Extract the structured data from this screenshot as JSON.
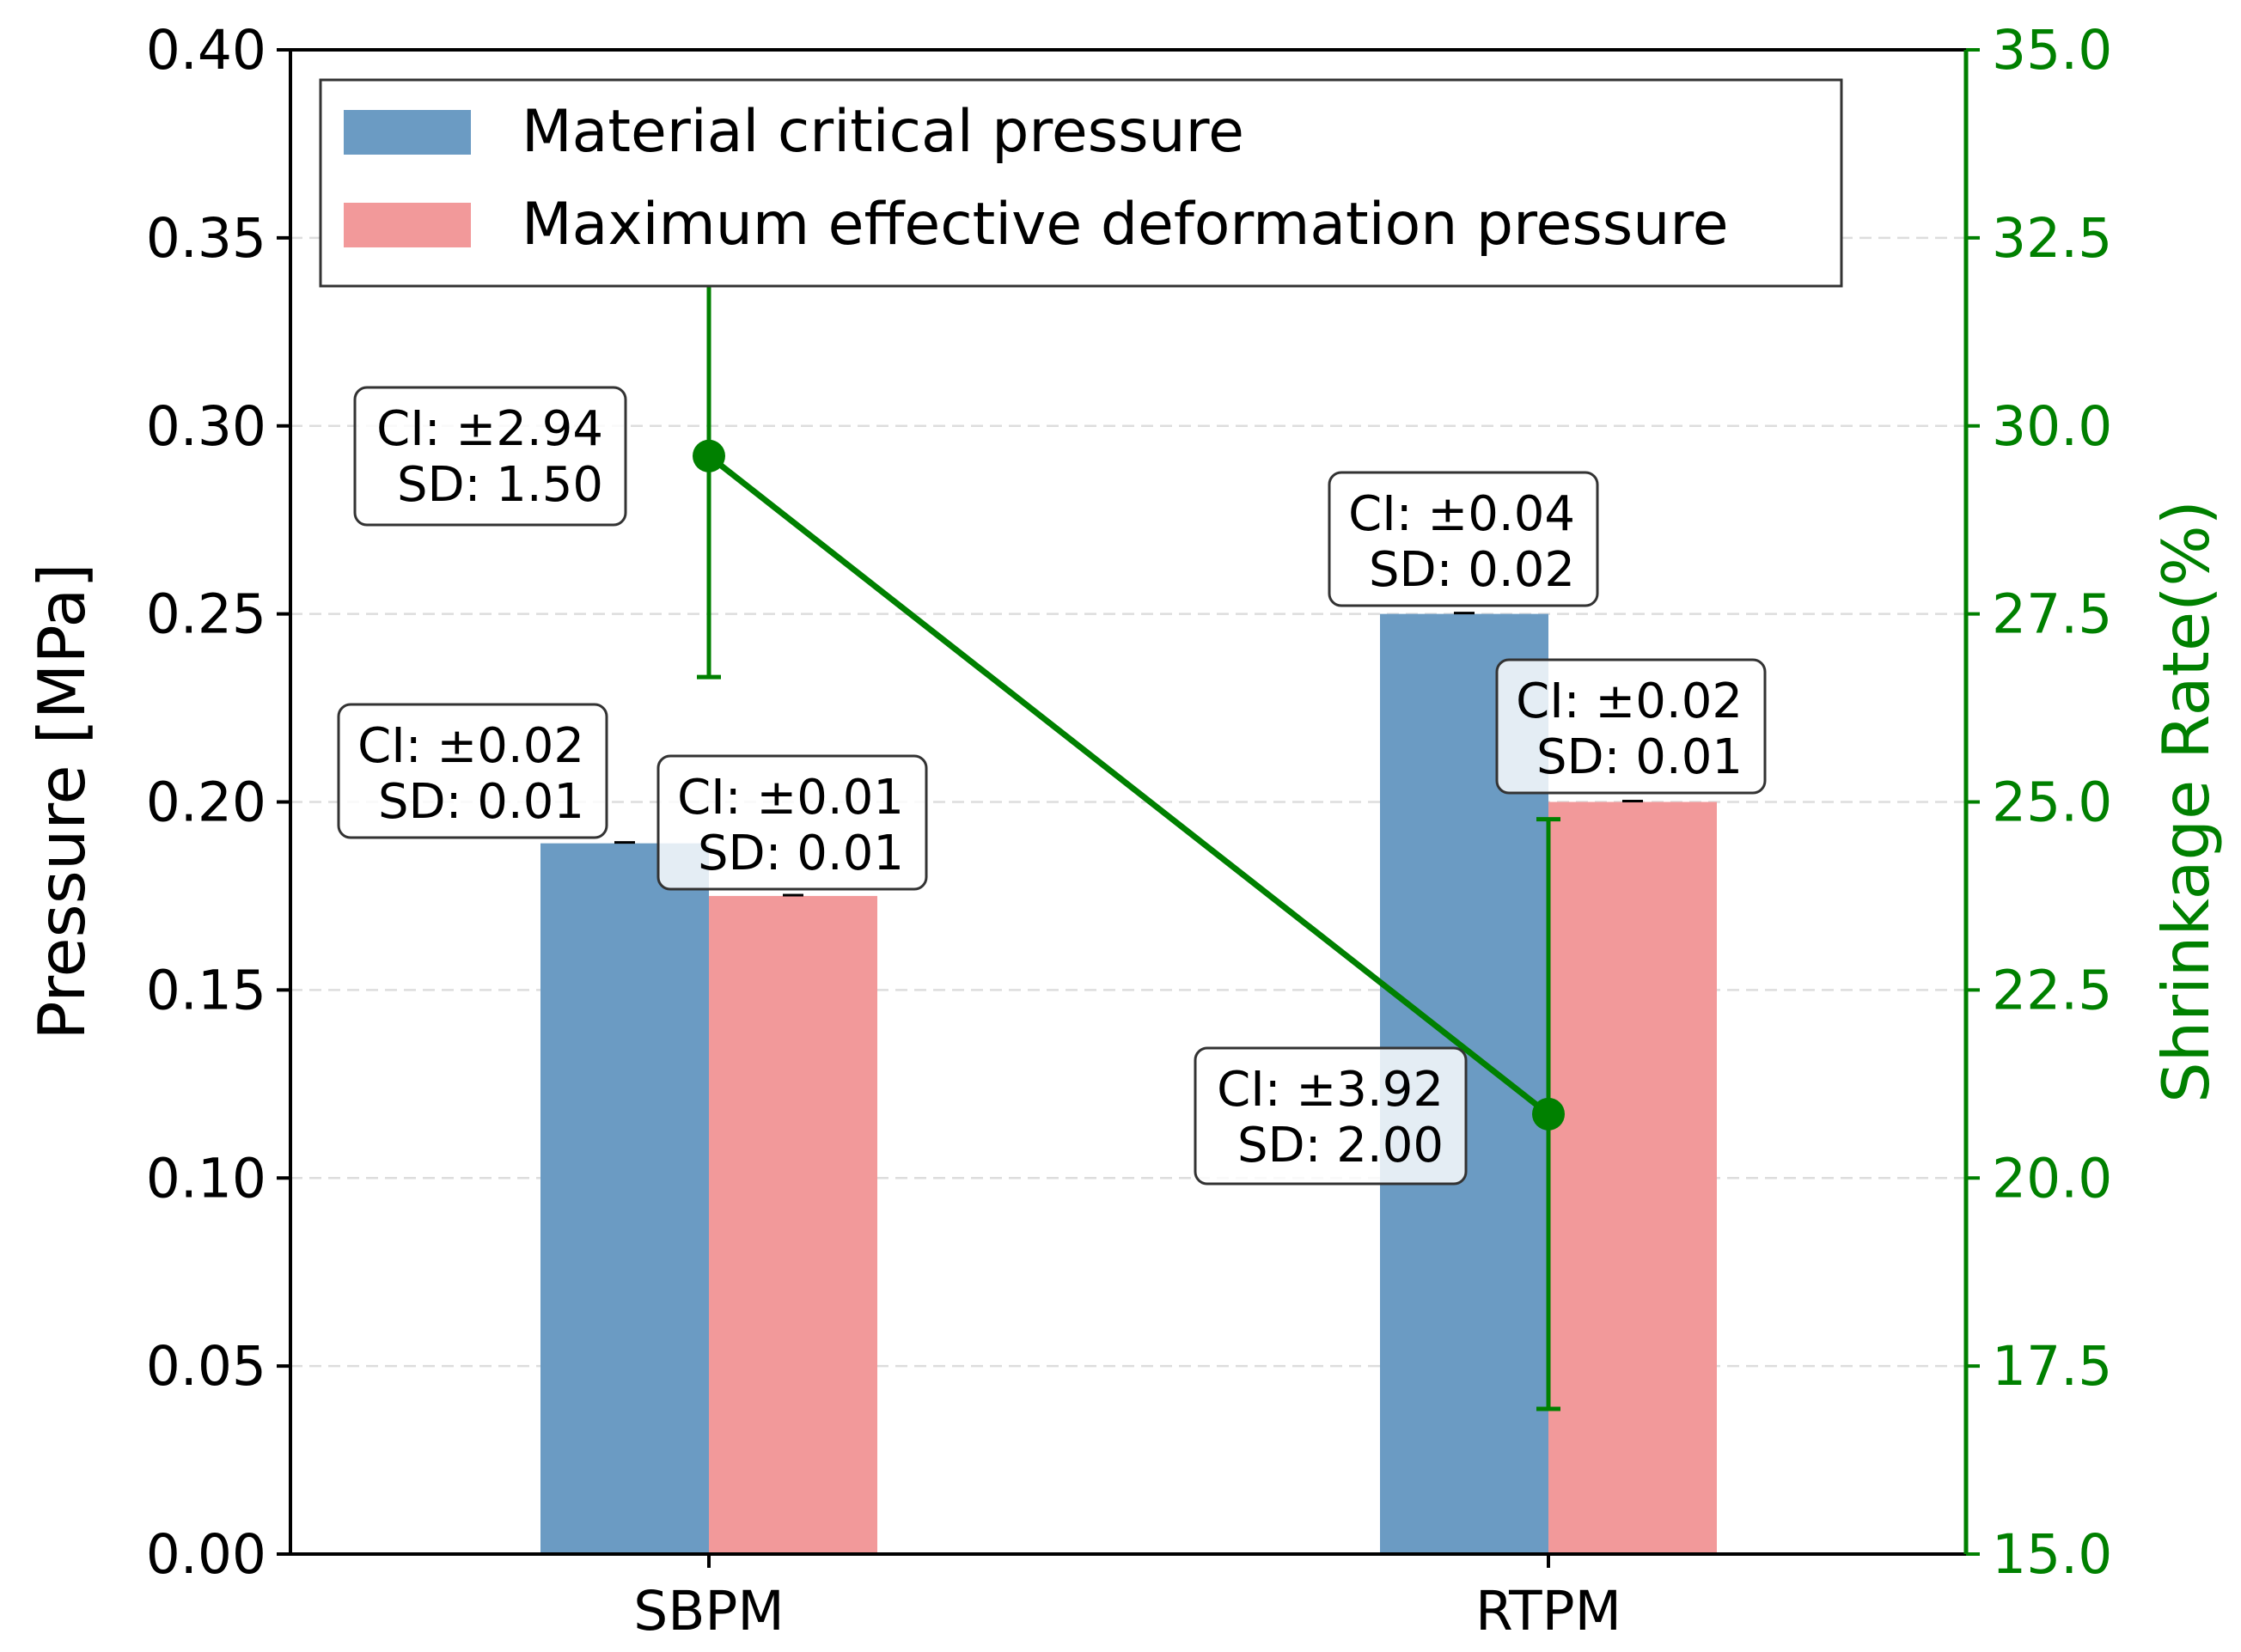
{
  "chart_data": {
    "type": "bar",
    "categories": [
      "SBPM",
      "RTPM"
    ],
    "series": [
      {
        "name": "Material critical pressure",
        "color": "#6b9bc3",
        "axis": "left",
        "values": [
          0.189,
          0.25
        ],
        "annotations": [
          {
            "ci": "CI: ±0.02",
            "sd": "SD: 0.01"
          },
          {
            "ci": "CI: ±0.04",
            "sd": "SD: 0.02"
          }
        ]
      },
      {
        "name": "Maximum effective deformation pressure",
        "color": "#f2999a",
        "axis": "left",
        "values": [
          0.175,
          0.2
        ],
        "annotations": [
          {
            "ci": "CI: ±0.01",
            "sd": "SD: 0.01"
          },
          {
            "ci": "CI: ±0.02",
            "sd": "SD: 0.01"
          }
        ]
      }
    ],
    "line_series": {
      "name": "Shrinkage Rate",
      "color": "#008000",
      "axis": "right",
      "values": [
        29.6,
        20.85
      ],
      "errors": [
        2.94,
        3.92
      ],
      "annotations": [
        {
          "ci": "CI: ±2.94",
          "sd": "SD: 1.50"
        },
        {
          "ci": "CI: ±3.92",
          "sd": "SD: 2.00"
        }
      ]
    },
    "ylabel": "Pressure [MPa]",
    "y2label": "Shrinkage Rate(%)",
    "ylim": [
      0,
      0.4
    ],
    "y2lim": [
      15,
      35
    ],
    "yticks": [
      "0.00",
      "0.05",
      "0.10",
      "0.15",
      "0.20",
      "0.25",
      "0.30",
      "0.35",
      "0.40"
    ],
    "y2ticks": [
      "15.0",
      "17.5",
      "20.0",
      "22.5",
      "25.0",
      "27.5",
      "30.0",
      "32.5",
      "35.0"
    ],
    "grid": "horizontal dashed",
    "legend": "top-left"
  }
}
